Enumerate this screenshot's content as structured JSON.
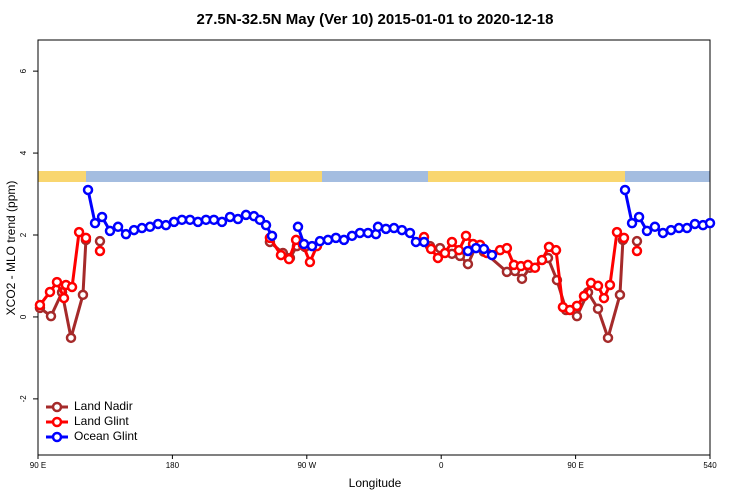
{
  "chart_data": {
    "type": "line",
    "title": "27.5N-32.5N May (Ver 10)   2015-01-01 to 2020-12-18",
    "x_label": "Longitude",
    "y_label": "XCO2 - MLO trend (ppm)",
    "xlim": [
      90,
      540
    ],
    "xticks": [
      {
        "value": 90,
        "label": "90 E"
      },
      180,
      {
        "value": 270,
        "label": "90 W"
      },
      {
        "value": 360,
        "label": "0"
      },
      {
        "value": 450,
        "label": "90 E"
      },
      540
    ],
    "ylim": [
      -3.37,
      6.76
    ],
    "yticks": [
      -2,
      0,
      2,
      4,
      6
    ],
    "legend": "bottom-left",
    "series": [
      {
        "name": "Land Nadir",
        "color": "#a52a2a",
        "x": [
          91.3,
          98.7,
          106.1,
          112.1,
          120.1,
          122.1,
          null,
          131.5,
          null,
          245.3,
          254.0,
          258.7,
          263.4,
          268.8,
          null,
          352.5,
          359.2,
          367.2,
          372.6,
          377.9,
          383.3,
          388.6,
          404.0,
          409.4,
          414.1,
          419.4,
          431.5,
          437.5,
          443.6,
          450.9,
          458.3,
          465.0,
          471.7,
          479.7,
          481.7,
          null,
          491.1
        ],
        "values": [
          0.22,
          0.02,
          0.6,
          -0.51,
          0.54,
          1.88,
          null,
          1.85,
          null,
          1.83,
          1.56,
          1.44,
          1.73,
          1.71,
          null,
          1.73,
          1.68,
          1.54,
          1.49,
          1.29,
          1.73,
          1.59,
          1.1,
          1.12,
          0.93,
          1.2,
          1.44,
          0.9,
          0.17,
          0.02,
          0.6,
          0.2,
          -0.51,
          0.54,
          1.88,
          null,
          1.85
        ]
      },
      {
        "name": "Land Glint",
        "color": "#ff0000",
        "x": [
          91.3,
          98.0,
          102.7,
          107.4,
          108.7,
          112.8,
          117.5,
          122.1,
          null,
          131.5,
          null,
          245.3,
          252.7,
          258.1,
          262.8,
          267.4,
          272.1,
          276.8,
          null,
          348.5,
          353.2,
          357.8,
          362.5,
          367.2,
          371.9,
          376.6,
          381.3,
          386.0,
          390.6,
          399.4,
          404.0,
          408.7,
          413.4,
          418.1,
          422.8,
          427.5,
          432.2,
          436.9,
          441.5,
          446.2,
          450.9,
          455.6,
          460.3,
          465.0,
          469.0,
          473.0,
          477.7,
          482.4,
          null,
          491.1
        ],
        "values": [
          0.29,
          0.61,
          0.85,
          0.46,
          0.78,
          0.73,
          2.07,
          1.93,
          null,
          1.61,
          null,
          1.93,
          1.51,
          1.41,
          1.88,
          1.76,
          1.34,
          1.73,
          null,
          1.95,
          1.66,
          1.44,
          1.56,
          1.83,
          1.63,
          1.98,
          1.78,
          1.76,
          1.56,
          1.63,
          1.68,
          1.27,
          1.24,
          1.27,
          1.2,
          1.39,
          1.71,
          1.63,
          0.24,
          0.17,
          0.27,
          0.51,
          0.83,
          0.76,
          0.46,
          0.78,
          2.07,
          1.93,
          null,
          1.61
        ]
      },
      {
        "name": "Ocean Glint",
        "color": "#0000ff",
        "x": [
          123.5,
          128.2,
          132.9,
          138.2,
          143.6,
          148.9,
          154.3,
          159.6,
          165.0,
          170.4,
          175.7,
          181.1,
          186.4,
          191.8,
          197.1,
          202.5,
          207.8,
          213.2,
          218.6,
          223.9,
          229.3,
          234.6,
          238.6,
          242.7,
          246.7,
          null,
          264.1,
          268.1,
          273.5,
          278.8,
          284.2,
          289.5,
          294.9,
          300.3,
          305.6,
          311.0,
          316.3,
          317.7,
          323.0,
          328.4,
          333.7,
          339.1,
          343.1,
          348.5,
          null,
          377.9,
          383.3,
          388.6,
          394.0,
          null,
          483.1,
          487.8,
          492.5,
          497.8,
          503.1,
          508.5,
          513.9,
          519.2,
          524.6,
          529.9,
          535.3,
          540
        ],
        "values": [
          3.1,
          2.29,
          2.44,
          2.1,
          2.2,
          2.02,
          2.12,
          2.17,
          2.2,
          2.27,
          2.24,
          2.32,
          2.37,
          2.37,
          2.32,
          2.37,
          2.37,
          2.32,
          2.44,
          2.39,
          2.49,
          2.46,
          2.37,
          2.24,
          1.98,
          null,
          2.2,
          1.78,
          1.73,
          1.85,
          1.88,
          1.93,
          1.88,
          1.98,
          2.05,
          2.05,
          2.02,
          2.2,
          2.15,
          2.17,
          2.12,
          2.05,
          1.83,
          1.83,
          null,
          1.61,
          1.68,
          1.66,
          1.51,
          null,
          3.1,
          2.29,
          2.44,
          2.1,
          2.2,
          2.05,
          2.12,
          2.17,
          2.17,
          2.27,
          2.24,
          2.29
        ]
      }
    ]
  }
}
